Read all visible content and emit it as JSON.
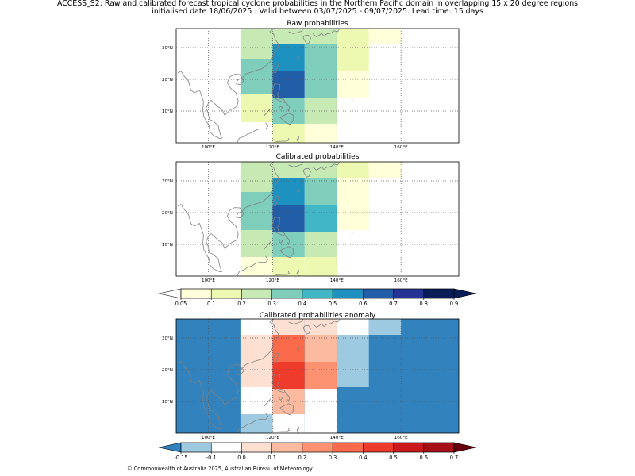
{
  "header": {
    "title_line1": "ACCESS_S2: Raw and calibrated forecast tropical cyclone probabilities in the Northern Pacific domain in overlapping 15 x 20 degree regions",
    "title_line2": "initialised date 18/06/2025 :  Valid between 03/07/2025 - 09/07/2025. Lead time: 15 days"
  },
  "footer": {
    "copyright": "© Commonwealth of Australia 2025, Australian Bureau of Meteorology"
  },
  "map": {
    "lon_range": [
      90,
      178
    ],
    "lat_range": [
      0,
      36
    ],
    "x_ticks": [
      100,
      120,
      140,
      160
    ],
    "x_tick_labels": [
      "100°E",
      "120°E",
      "140°E",
      "160°E"
    ],
    "y_ticks": [
      10,
      20,
      30
    ],
    "y_tick_labels": [
      "10°N",
      "20°N",
      "30°N"
    ],
    "grid": true,
    "coastline_color": "#808080"
  },
  "chart_data": [
    {
      "type": "heatmap",
      "title": "Raw probabilities",
      "colormap": "YlGnBu",
      "cells": [
        {
          "lon": [
            110,
            120
          ],
          "lat": [
            26.5,
            36
          ],
          "value": 0.2
        },
        {
          "lon": [
            110,
            120
          ],
          "lat": [
            15.5,
            26.5
          ],
          "value": 0.3
        },
        {
          "lon": [
            110,
            120
          ],
          "lat": [
            6.5,
            15.5
          ],
          "value": 0.1
        },
        {
          "lon": [
            120,
            130
          ],
          "lat": [
            31,
            36
          ],
          "value": 0.2
        },
        {
          "lon": [
            120,
            130
          ],
          "lat": [
            22.5,
            31
          ],
          "value": 0.5
        },
        {
          "lon": [
            120,
            130
          ],
          "lat": [
            14,
            22.5
          ],
          "value": 0.6
        },
        {
          "lon": [
            120,
            130
          ],
          "lat": [
            6,
            14
          ],
          "value": 0.3
        },
        {
          "lon": [
            120,
            130
          ],
          "lat": [
            0,
            6
          ],
          "value": 0.1
        },
        {
          "lon": [
            130,
            140
          ],
          "lat": [
            31,
            36
          ],
          "value": 0.2
        },
        {
          "lon": [
            130,
            140
          ],
          "lat": [
            14,
            31
          ],
          "value": 0.3
        },
        {
          "lon": [
            130,
            140
          ],
          "lat": [
            6,
            14
          ],
          "value": 0.2
        },
        {
          "lon": [
            130,
            140
          ],
          "lat": [
            0,
            6
          ],
          "value": 0.05
        },
        {
          "lon": [
            140,
            150
          ],
          "lat": [
            22.5,
            36
          ],
          "value": 0.1
        },
        {
          "lon": [
            140,
            150
          ],
          "lat": [
            14,
            22.5
          ],
          "value": 0.05
        },
        {
          "lon": [
            150,
            160
          ],
          "lat": [
            31,
            36
          ],
          "value": 0.05
        }
      ]
    },
    {
      "type": "heatmap",
      "title": "Calibrated probabilities",
      "colormap": "YlGnBu",
      "cells": [
        {
          "lon": [
            110,
            120
          ],
          "lat": [
            26.5,
            36
          ],
          "value": 0.2
        },
        {
          "lon": [
            110,
            120
          ],
          "lat": [
            14.5,
            26.5
          ],
          "value": 0.3
        },
        {
          "lon": [
            110,
            120
          ],
          "lat": [
            6,
            14.5
          ],
          "value": 0.2
        },
        {
          "lon": [
            110,
            120
          ],
          "lat": [
            0,
            6
          ],
          "value": 0.05
        },
        {
          "lon": [
            120,
            130
          ],
          "lat": [
            31,
            36
          ],
          "value": 0.2
        },
        {
          "lon": [
            120,
            130
          ],
          "lat": [
            22.5,
            31
          ],
          "value": 0.5
        },
        {
          "lon": [
            120,
            130
          ],
          "lat": [
            14,
            22.5
          ],
          "value": 0.6
        },
        {
          "lon": [
            120,
            130
          ],
          "lat": [
            6,
            14
          ],
          "value": 0.3
        },
        {
          "lon": [
            120,
            130
          ],
          "lat": [
            0,
            6
          ],
          "value": 0.1
        },
        {
          "lon": [
            130,
            140
          ],
          "lat": [
            31,
            36
          ],
          "value": 0.2
        },
        {
          "lon": [
            130,
            140
          ],
          "lat": [
            22.5,
            31
          ],
          "value": 0.3
        },
        {
          "lon": [
            130,
            140
          ],
          "lat": [
            14,
            22.5
          ],
          "value": 0.4
        },
        {
          "lon": [
            130,
            140
          ],
          "lat": [
            6,
            14
          ],
          "value": 0.2
        },
        {
          "lon": [
            130,
            140
          ],
          "lat": [
            0,
            6
          ],
          "value": 0.1
        },
        {
          "lon": [
            140,
            150
          ],
          "lat": [
            31,
            36
          ],
          "value": 0.1
        },
        {
          "lon": [
            140,
            150
          ],
          "lat": [
            14.5,
            31
          ],
          "value": 0.05
        },
        {
          "lon": [
            150,
            160
          ],
          "lat": [
            31,
            36
          ],
          "value": 0.05
        }
      ]
    },
    {
      "type": "heatmap",
      "title": "Calibrated probabilities anomaly",
      "colormap": "RdBu_r",
      "background_value": -0.2,
      "cells": [
        {
          "lon": [
            110,
            120
          ],
          "lat": [
            31,
            36
          ],
          "value": 0.0
        },
        {
          "lon": [
            110,
            120
          ],
          "lat": [
            14.5,
            31
          ],
          "value": 0.1
        },
        {
          "lon": [
            110,
            120
          ],
          "lat": [
            6,
            14.5
          ],
          "value": 0.0
        },
        {
          "lon": [
            110,
            120
          ],
          "lat": [
            0,
            6
          ],
          "value": -0.1
        },
        {
          "lon": [
            120,
            130
          ],
          "lat": [
            31,
            36
          ],
          "value": 0.1
        },
        {
          "lon": [
            120,
            130
          ],
          "lat": [
            22.5,
            31
          ],
          "value": 0.4
        },
        {
          "lon": [
            120,
            130
          ],
          "lat": [
            14,
            22.5
          ],
          "value": 0.5
        },
        {
          "lon": [
            120,
            130
          ],
          "lat": [
            6,
            14
          ],
          "value": 0.2
        },
        {
          "lon": [
            120,
            130
          ],
          "lat": [
            0,
            6
          ],
          "value": 0.0
        },
        {
          "lon": [
            130,
            140
          ],
          "lat": [
            31,
            36
          ],
          "value": 0.1
        },
        {
          "lon": [
            130,
            140
          ],
          "lat": [
            22.5,
            31
          ],
          "value": 0.2
        },
        {
          "lon": [
            130,
            140
          ],
          "lat": [
            14,
            22.5
          ],
          "value": 0.3
        },
        {
          "lon": [
            130,
            140
          ],
          "lat": [
            6,
            14
          ],
          "value": 0.0
        },
        {
          "lon": [
            130,
            140
          ],
          "lat": [
            0,
            6
          ],
          "value": 0.0
        },
        {
          "lon": [
            140,
            150
          ],
          "lat": [
            31,
            36
          ],
          "value": 0.0
        },
        {
          "lon": [
            140,
            150
          ],
          "lat": [
            14.5,
            31
          ],
          "value": -0.1
        },
        {
          "lon": [
            140,
            150
          ],
          "lat": [
            0,
            14.5
          ],
          "value": -0.2
        },
        {
          "lon": [
            150,
            160
          ],
          "lat": [
            31,
            36
          ],
          "value": -0.1
        }
      ]
    }
  ],
  "colorbars": {
    "probability": {
      "tick_labels": [
        "0.05",
        "0.1",
        "0.2",
        "0.3",
        "0.4",
        "0.5",
        "0.6",
        "0.7",
        "0.8",
        "0.9"
      ],
      "bin_colors": [
        "#ffffd9",
        "#edf8b1",
        "#c7e9b4",
        "#7fcdbb",
        "#41b6c4",
        "#1d91c0",
        "#225ea8",
        "#253494",
        "#081d58"
      ],
      "under_color": "#ffffff",
      "over_color": "#081d58"
    },
    "anomaly": {
      "tick_labels": [
        "-0.15",
        "-0.1",
        "0.0",
        "0.1",
        "0.2",
        "0.3",
        "0.4",
        "0.5",
        "0.6",
        "0.7"
      ],
      "bin_colors": [
        "#9ecae1",
        "#ffffff",
        "#fee0d2",
        "#fcbba1",
        "#fc9272",
        "#fb6a4a",
        "#ef3b2c",
        "#cb181d",
        "#a50f15"
      ],
      "under_color": "#3182bd",
      "over_color": "#67000d"
    }
  },
  "colors": {
    "prob": {
      "0.05": "#ffffd9",
      "0.1": "#edf8b1",
      "0.2": "#c7e9b4",
      "0.3": "#7fcdbb",
      "0.4": "#41b6c4",
      "0.5": "#1d91c0",
      "0.6": "#225ea8",
      "0.7": "#253494",
      "0.8": "#081d58"
    },
    "anom": {
      "-0.2": "#3182bd",
      "-0.1": "#9ecae1",
      "0.0": "#ffffff",
      "0.1": "#fee0d2",
      "0.2": "#fcbba1",
      "0.3": "#fc9272",
      "0.4": "#fb6a4a",
      "0.5": "#ef3b2c",
      "0.6": "#cb181d",
      "0.7": "#a50f15"
    }
  }
}
